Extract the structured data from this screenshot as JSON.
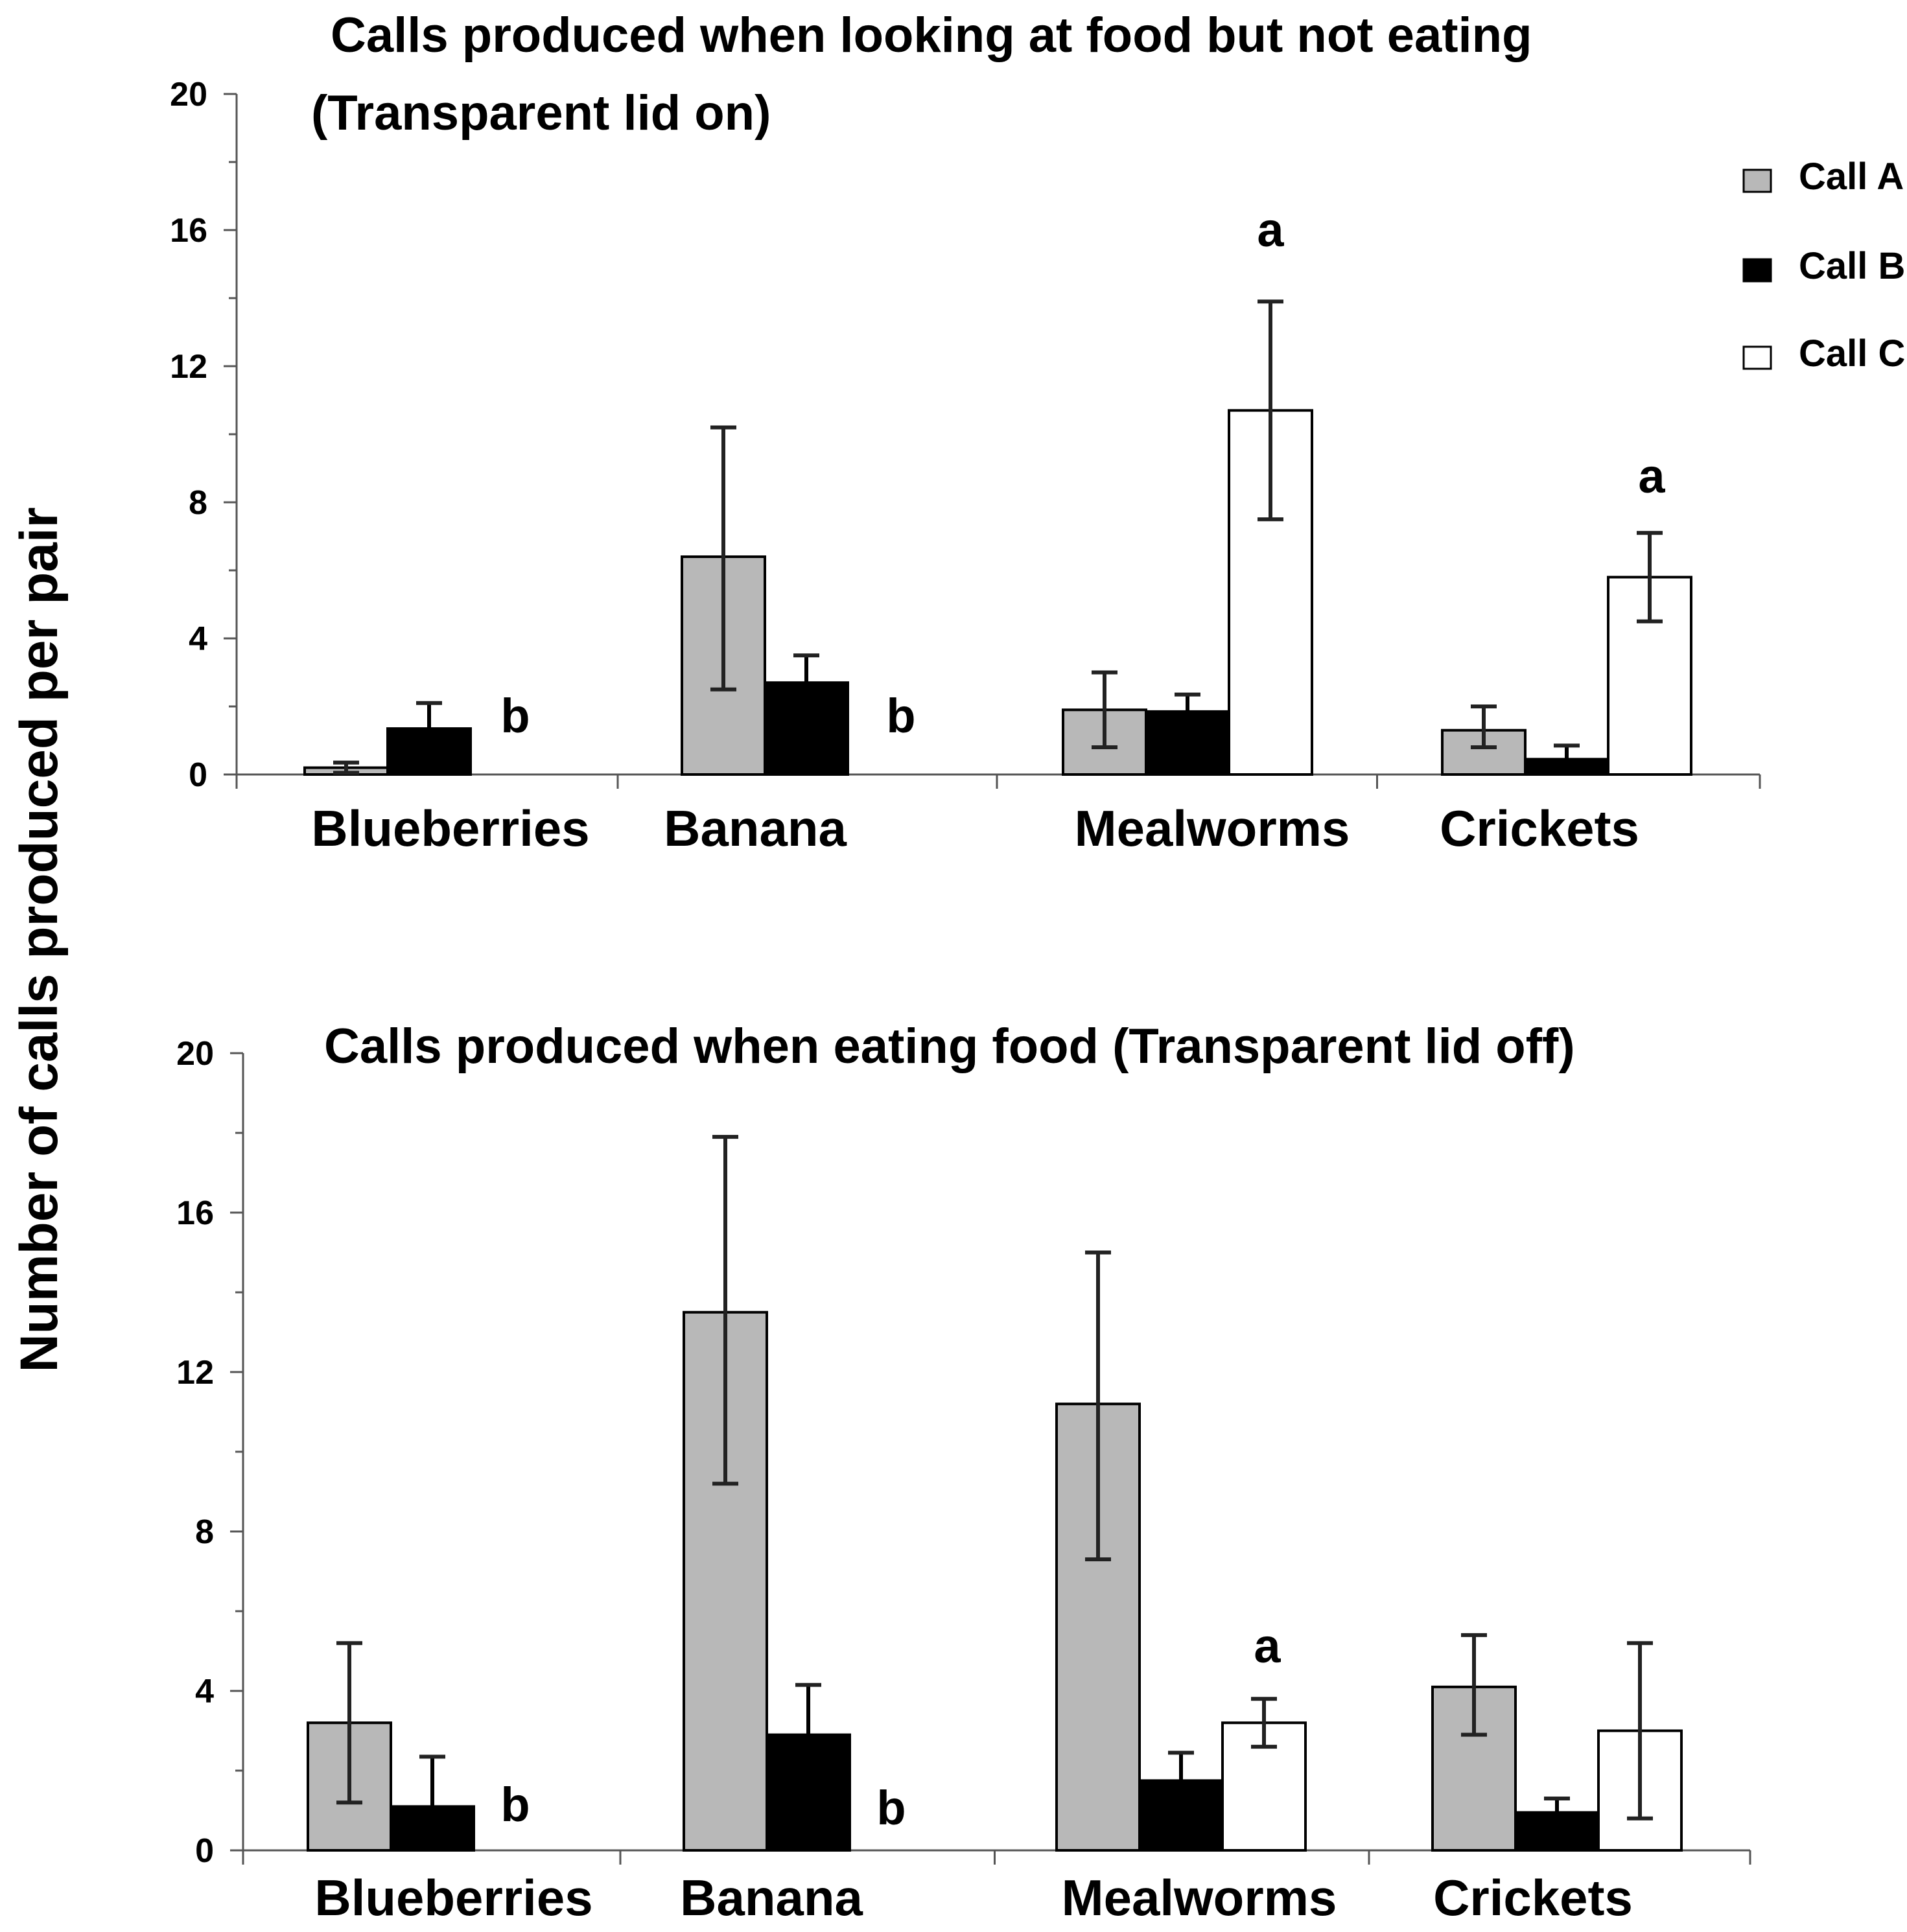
{
  "y_axis_label": "Number of calls produced per pair",
  "legend": {
    "entries": [
      {
        "label": "Call A",
        "color": "#b8b8b8"
      },
      {
        "label": "Call B",
        "color": "#000000"
      },
      {
        "label": "Call C",
        "color": "#ffffff"
      }
    ]
  },
  "chart_data": [
    {
      "type": "bar",
      "title": "Calls produced when looking at food but not eating",
      "subtitle": "(Transparent lid on)",
      "ylabel": "Number of calls produced per pair",
      "ylim": [
        0,
        20
      ],
      "yticks": [
        0,
        4,
        8,
        12,
        16,
        20
      ],
      "categories": [
        "Blueberries",
        "Banana",
        "Mealworms",
        "Crickets"
      ],
      "series": [
        {
          "name": "Call A",
          "values": [
            0.2,
            6.4,
            1.9,
            1.3
          ],
          "err_low": [
            0.05,
            2.5,
            0.8,
            0.8
          ],
          "err_high": [
            0.35,
            10.2,
            3.0,
            2.0
          ]
        },
        {
          "name": "Call B",
          "values": [
            1.35,
            2.7,
            1.85,
            0.45
          ],
          "err_low": [
            null,
            null,
            null,
            null
          ],
          "err_high": [
            2.1,
            3.5,
            2.35,
            0.85
          ]
        },
        {
          "name": "Call C",
          "values": [
            0,
            0,
            10.7,
            5.8
          ],
          "err_low": [
            null,
            null,
            7.5,
            4.5
          ],
          "err_high": [
            null,
            null,
            13.9,
            7.1
          ]
        }
      ],
      "annotations": [
        {
          "text": "b",
          "category": "Blueberries"
        },
        {
          "text": "b",
          "category": "Banana"
        },
        {
          "text": "a",
          "category": "Mealworms"
        },
        {
          "text": "a",
          "category": "Crickets"
        }
      ]
    },
    {
      "type": "bar",
      "title": "Calls produced when eating food (Transparent lid off)",
      "ylabel": "Number of calls produced per pair",
      "ylim": [
        0,
        20
      ],
      "yticks": [
        0,
        4,
        8,
        12,
        16,
        20
      ],
      "categories": [
        "Blueberries",
        "Banana",
        "Mealworms",
        "Crickets"
      ],
      "series": [
        {
          "name": "Call A",
          "values": [
            3.2,
            13.5,
            11.2,
            4.1
          ],
          "err_low": [
            1.2,
            9.2,
            7.3,
            2.9
          ],
          "err_high": [
            5.2,
            17.9,
            15.0,
            5.4
          ]
        },
        {
          "name": "Call B",
          "values": [
            1.1,
            2.9,
            1.75,
            0.95
          ],
          "err_low": [
            null,
            null,
            null,
            null
          ],
          "err_high": [
            2.35,
            4.15,
            2.45,
            1.3
          ]
        },
        {
          "name": "Call C",
          "values": [
            0,
            0,
            3.2,
            3.0
          ],
          "err_low": [
            null,
            null,
            2.6,
            0.8
          ],
          "err_high": [
            null,
            null,
            3.8,
            5.2
          ]
        }
      ],
      "annotations": [
        {
          "text": "b",
          "category": "Blueberries"
        },
        {
          "text": "b",
          "category": "Banana"
        },
        {
          "text": "a",
          "category": "Mealworms"
        }
      ]
    }
  ]
}
